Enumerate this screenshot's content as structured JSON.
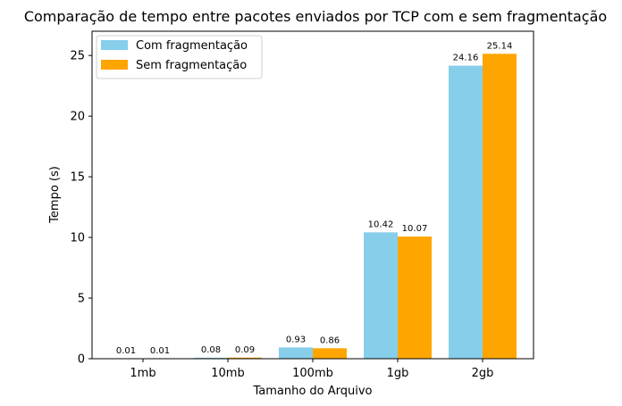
{
  "chart_data": {
    "type": "bar",
    "title": "Comparação de tempo entre pacotes enviados por TCP com e sem fragmentação",
    "xlabel": "Tamanho do Arquivo",
    "ylabel": "Tempo (s)",
    "categories": [
      "1mb",
      "10mb",
      "100mb",
      "1gb",
      "2gb"
    ],
    "ylim": [
      0,
      27
    ],
    "yticks": [
      0,
      5,
      10,
      15,
      20,
      25
    ],
    "series": [
      {
        "name": "Com fragmentação",
        "color": "#87ceeb",
        "values": [
          0.01,
          0.08,
          0.93,
          10.42,
          24.16
        ]
      },
      {
        "name": "Sem fragmentação",
        "color": "#ffa500",
        "values": [
          0.01,
          0.09,
          0.86,
          10.07,
          25.14
        ]
      }
    ],
    "legend_position": "top-left",
    "grid": false
  }
}
